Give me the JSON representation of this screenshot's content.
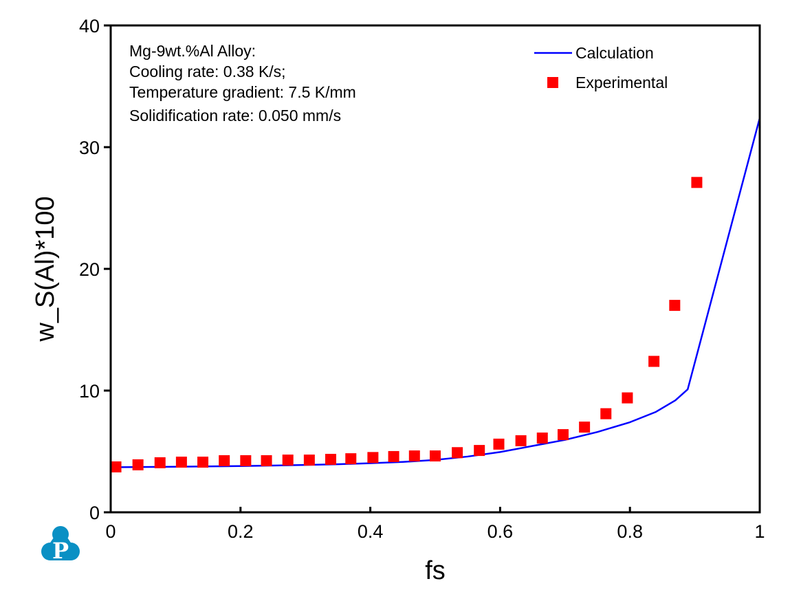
{
  "chart_data": {
    "type": "line",
    "title": "",
    "xlabel": "fs",
    "ylabel": "w_S(Al)*100",
    "xlim": [
      0,
      1
    ],
    "ylim": [
      0,
      40
    ],
    "xticks": [
      0,
      0.2,
      0.4,
      0.6,
      0.8,
      1
    ],
    "xtick_labels": [
      "0",
      "0.2",
      "0.4",
      "0.6",
      "0.8",
      "1"
    ],
    "yticks": [
      0,
      10,
      20,
      30,
      40
    ],
    "ytick_labels": [
      "0",
      "10",
      "20",
      "30",
      "40"
    ],
    "grid": false,
    "legend_position": "top-right",
    "annotation": [
      "Mg-9wt.%Al Alloy:",
      "Cooling rate: 0.38 K/s;",
      "Temperature gradient: 7.5 K/mm",
      "Solidification rate: 0.050 mm/s"
    ],
    "series": [
      {
        "name": "Calculation",
        "kind": "line",
        "color": "#0000ff",
        "x": [
          0,
          0.05,
          0.1,
          0.15,
          0.2,
          0.25,
          0.3,
          0.35,
          0.4,
          0.45,
          0.5,
          0.55,
          0.6,
          0.65,
          0.7,
          0.75,
          0.8,
          0.84,
          0.87,
          0.889,
          1.0
        ],
        "y": [
          3.7,
          3.72,
          3.74,
          3.77,
          3.8,
          3.84,
          3.89,
          3.95,
          4.03,
          4.14,
          4.3,
          4.58,
          4.95,
          5.45,
          5.95,
          6.6,
          7.4,
          8.25,
          9.2,
          10.1,
          32.4
        ]
      },
      {
        "name": "Experimental",
        "kind": "scatter",
        "marker": "square",
        "color": "#ff0000",
        "x": [
          0.008,
          0.042,
          0.076,
          0.109,
          0.142,
          0.175,
          0.208,
          0.24,
          0.273,
          0.306,
          0.339,
          0.37,
          0.404,
          0.436,
          0.468,
          0.5,
          0.534,
          0.568,
          0.598,
          0.632,
          0.665,
          0.697,
          0.73,
          0.763,
          0.796,
          0.837,
          0.869,
          0.903
        ],
        "y": [
          3.73,
          3.9,
          4.07,
          4.12,
          4.12,
          4.24,
          4.24,
          4.24,
          4.29,
          4.29,
          4.35,
          4.4,
          4.5,
          4.58,
          4.63,
          4.63,
          4.9,
          5.08,
          5.6,
          5.88,
          6.1,
          6.38,
          7.0,
          8.1,
          9.4,
          12.4,
          17.0,
          27.1
        ]
      }
    ]
  },
  "logo": {
    "letter": "P",
    "color": "#0a90c4"
  }
}
